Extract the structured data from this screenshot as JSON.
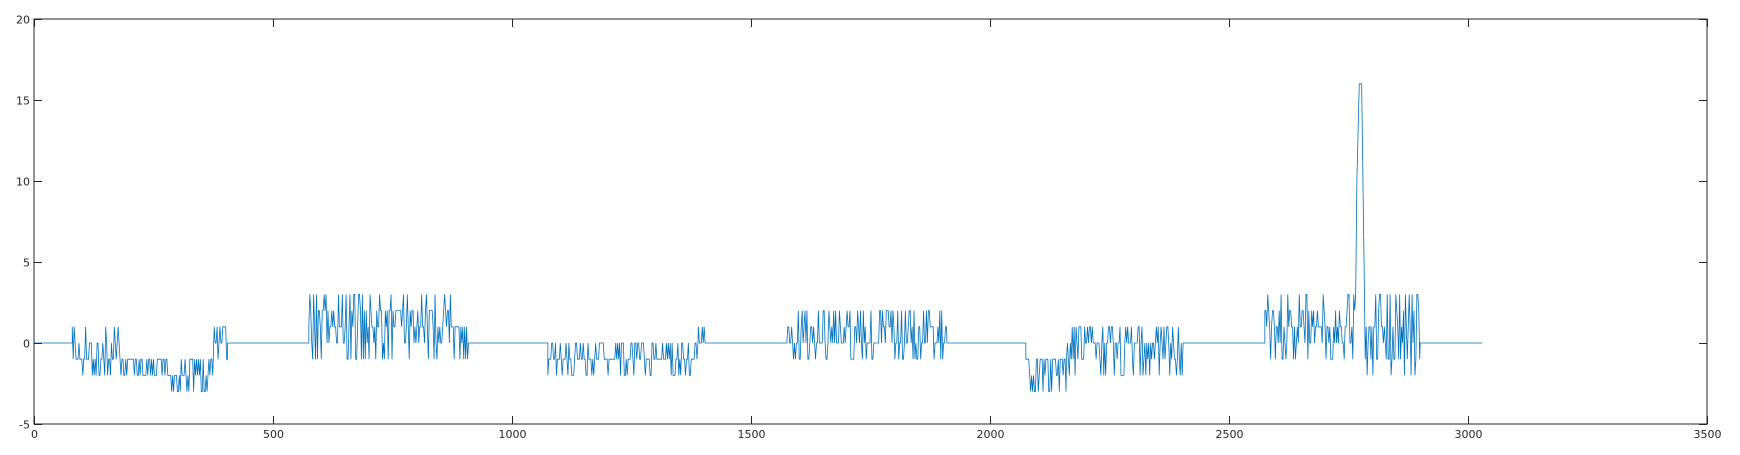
{
  "chart_data": {
    "type": "line",
    "title": "",
    "xlabel": "",
    "ylabel": "",
    "xlim": [
      0,
      3500
    ],
    "ylim": [
      -5,
      20
    ],
    "x_ticks": [
      0,
      500,
      1000,
      1500,
      2000,
      2500,
      3000,
      3500
    ],
    "y_ticks": [
      -5,
      0,
      5,
      10,
      15,
      20
    ],
    "x_tick_labels": [
      "0",
      "500",
      "1000",
      "1500",
      "2000",
      "2500",
      "3000",
      "3500"
    ],
    "y_tick_labels": [
      "-5",
      "0",
      "5",
      "10",
      "15",
      "20"
    ],
    "grid": false,
    "box": true,
    "series": [
      {
        "color": "#0072BD",
        "segments": [
          {
            "x_start": 0,
            "x_end": 80,
            "levels": [
              0
            ]
          },
          {
            "x_start": 80,
            "x_end": 190,
            "levels": [
              0,
              -1,
              -2,
              1,
              -1,
              0
            ]
          },
          {
            "x_start": 190,
            "x_end": 270,
            "levels": [
              -1,
              -2,
              -1
            ]
          },
          {
            "x_start": 270,
            "x_end": 375,
            "levels": [
              -2,
              -3,
              -1,
              -2
            ]
          },
          {
            "x_start": 375,
            "x_end": 405,
            "levels": [
              1,
              0,
              -1
            ]
          },
          {
            "x_start": 405,
            "x_end": 575,
            "levels": [
              0
            ]
          },
          {
            "x_start": 575,
            "x_end": 875,
            "levels": [
              1,
              2,
              3,
              0,
              1,
              2,
              -1
            ]
          },
          {
            "x_start": 875,
            "x_end": 910,
            "levels": [
              0,
              -1,
              1
            ]
          },
          {
            "x_start": 910,
            "x_end": 1075,
            "levels": [
              0
            ]
          },
          {
            "x_start": 1075,
            "x_end": 1390,
            "levels": [
              -1,
              0,
              -2,
              -1
            ]
          },
          {
            "x_start": 1390,
            "x_end": 1405,
            "levels": [
              1,
              0
            ]
          },
          {
            "x_start": 1405,
            "x_end": 1575,
            "levels": [
              0
            ]
          },
          {
            "x_start": 1575,
            "x_end": 1910,
            "levels": [
              0,
              1,
              -1,
              2,
              0
            ]
          },
          {
            "x_start": 1910,
            "x_end": 2075,
            "levels": [
              0
            ]
          },
          {
            "x_start": 2075,
            "x_end": 2160,
            "levels": [
              -1,
              -2,
              -3,
              -1
            ]
          },
          {
            "x_start": 2160,
            "x_end": 2405,
            "levels": [
              0,
              -1,
              1,
              -2,
              0
            ]
          },
          {
            "x_start": 2405,
            "x_end": 2575,
            "levels": [
              0
            ]
          },
          {
            "x_start": 2575,
            "x_end": 2765,
            "levels": [
              1,
              2,
              3,
              0,
              -1,
              1
            ]
          },
          {
            "x_start": 2765,
            "x_end": 2785,
            "levels": [
              10,
              16,
              16,
              5
            ]
          },
          {
            "x_start": 2785,
            "x_end": 2900,
            "levels": [
              1,
              0,
              2,
              3,
              -1,
              -2,
              1
            ]
          },
          {
            "x_start": 2900,
            "x_end": 3030,
            "levels": [
              0
            ]
          }
        ]
      }
    ]
  }
}
